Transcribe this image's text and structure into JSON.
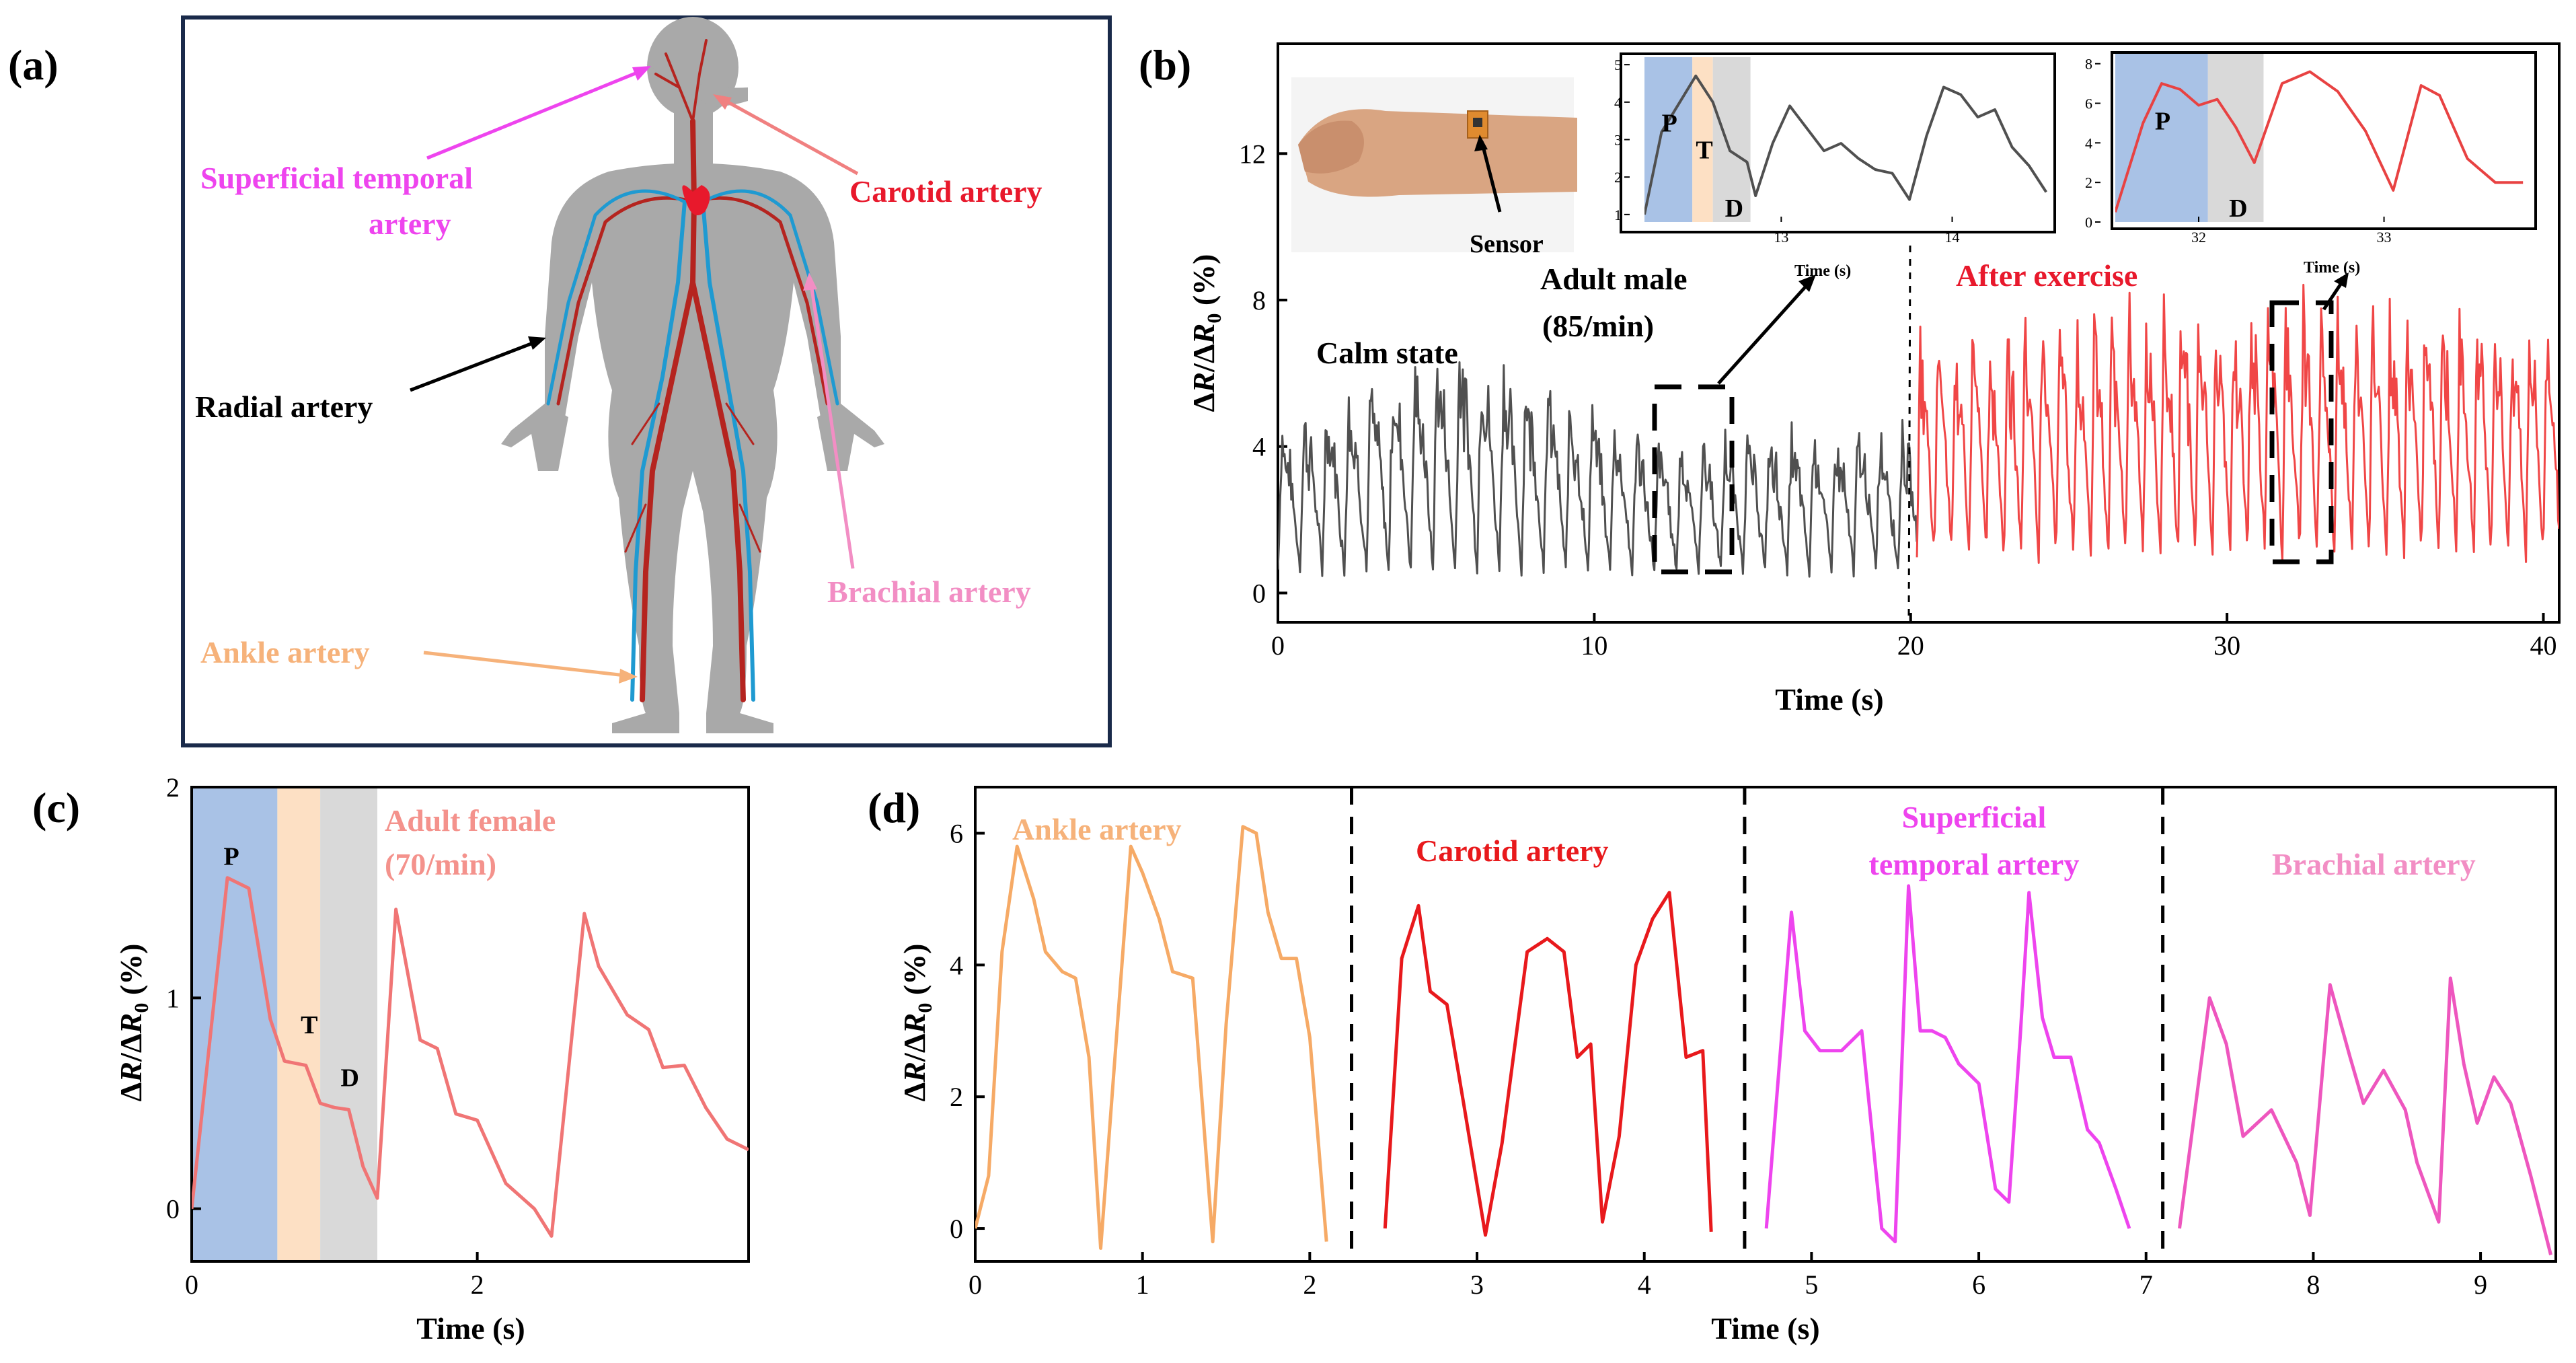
{
  "panel_labels": {
    "a": "(a)",
    "b": "(b)",
    "c": "(c)",
    "d": "(d)"
  },
  "body_diagram": {
    "labels": {
      "superficial_temporal": [
        "Superficial temporal",
        "artery"
      ],
      "carotid": "Carotid artery",
      "radial": "Radial artery",
      "brachial": "Brachial artery",
      "ankle": "Ankle artery"
    },
    "colors": {
      "superficial_temporal": "#ee44ee",
      "carotid": "#e8192c",
      "radial": "#000000",
      "brachial": "#f28ec4",
      "ankle": "#f6b27a",
      "body": "#a9a9a9",
      "frame": "#1a2a4a"
    }
  },
  "chart_data": [
    {
      "id": "b",
      "type": "line",
      "xlabel": "Time (s)",
      "ylabel": "ΔR/ΔR0 (%)",
      "xlim": [
        0,
        40.5
      ],
      "ylim": [
        -0.8,
        15
      ],
      "xticks": [
        "0",
        "10",
        "20",
        "30",
        "40"
      ],
      "yticks": [
        "0",
        "4",
        "8",
        "12"
      ],
      "annotations": {
        "calm": "Calm state",
        "subject": [
          "Adult male",
          "(85/min)"
        ],
        "exercise": "After exercise",
        "sensor": "Sensor",
        "inset_xlabel": "Time (s)"
      },
      "series": [
        {
          "name": "Calm state",
          "color": "#505050",
          "x_range": [
            0,
            20.2
          ],
          "period": 0.7,
          "baseline": 2.6,
          "amplitude": 2.2,
          "trend": [
            [
              0,
              1.0
            ],
            [
              6,
              1.6
            ],
            [
              12,
              0.9
            ],
            [
              20,
              1.0
            ]
          ]
        },
        {
          "name": "After exercise",
          "color": "#f04646",
          "x_range": [
            20.2,
            40.5
          ],
          "period": 0.55,
          "baseline": 3.7,
          "amplitude": 3.0,
          "trend": [
            [
              20.2,
              1.1
            ],
            [
              30,
              1.3
            ],
            [
              40.5,
              1.2
            ]
          ]
        }
      ],
      "insets": [
        {
          "ylim": [
            0.8,
            5.2
          ],
          "yticks": [
            "1",
            "2",
            "3",
            "4",
            "5"
          ],
          "xticks": [
            "13",
            "14"
          ],
          "color": "#505050",
          "x": [
            12.2,
            12.3,
            12.5,
            12.6,
            12.7,
            12.8,
            12.85,
            12.95,
            13.05,
            13.15,
            13.25,
            13.35,
            13.45,
            13.55,
            13.65,
            13.75,
            13.85,
            13.95,
            14.05,
            14.15,
            14.25,
            14.35,
            14.45,
            14.55
          ],
          "y": [
            1.0,
            3.2,
            4.7,
            4.0,
            2.7,
            2.4,
            1.5,
            2.9,
            3.9,
            3.3,
            2.7,
            2.9,
            2.5,
            2.2,
            2.1,
            1.4,
            3.1,
            4.4,
            4.2,
            3.6,
            3.8,
            2.8,
            2.3,
            1.6
          ],
          "phases": [
            {
              "label": "P",
              "from": 12.2,
              "to": 12.48,
              "color": "#a9c2e6"
            },
            {
              "label": "T",
              "from": 12.48,
              "to": 12.6,
              "color": "#fde0c4"
            },
            {
              "label": "D",
              "from": 12.6,
              "to": 12.82,
              "color": "#d9d9d9"
            }
          ]
        },
        {
          "ylim": [
            0,
            8.5
          ],
          "yticks": [
            "0",
            "2",
            "4",
            "6",
            "8"
          ],
          "xticks": [
            "32",
            "33"
          ],
          "color": "#e84242",
          "x": [
            31.55,
            31.7,
            31.8,
            31.9,
            32.0,
            32.1,
            32.2,
            32.3,
            32.45,
            32.6,
            32.75,
            32.9,
            33.05,
            33.2,
            33.3,
            33.45,
            33.6,
            33.75
          ],
          "y": [
            0.5,
            5.0,
            7.0,
            6.7,
            5.9,
            6.2,
            4.8,
            3.0,
            7.0,
            7.6,
            6.6,
            4.6,
            1.6,
            6.9,
            6.4,
            3.2,
            2.0,
            2.0
          ],
          "phases": [
            {
              "label": "P",
              "from": 31.55,
              "to": 32.05,
              "color": "#a9c2e6"
            },
            {
              "label": "D",
              "from": 32.05,
              "to": 32.35,
              "color": "#d9d9d9"
            }
          ]
        }
      ]
    },
    {
      "id": "c",
      "type": "line",
      "xlabel": "Time (s)",
      "ylabel": "ΔR/ΔR0 (%)",
      "xlim": [
        0,
        3.9
      ],
      "ylim": [
        -0.25,
        2
      ],
      "xticks": [
        "0",
        "2"
      ],
      "yticks": [
        "0",
        "1",
        "2"
      ],
      "annotations": {
        "subject": [
          "Adult female",
          "(70/min)"
        ]
      },
      "phases": [
        {
          "label": "P",
          "from": 0,
          "to": 0.6,
          "color": "#a9c2e6"
        },
        {
          "label": "T",
          "from": 0.6,
          "to": 0.9,
          "color": "#fde0c4"
        },
        {
          "label": "D",
          "from": 0.9,
          "to": 1.3,
          "color": "#d9d9d9"
        }
      ],
      "series": [
        {
          "name": "Adult female",
          "color": "#f07575",
          "x": [
            0,
            0.25,
            0.4,
            0.55,
            0.65,
            0.8,
            0.9,
            1.0,
            1.1,
            1.2,
            1.3,
            1.43,
            1.6,
            1.72,
            1.85,
            2.0,
            2.2,
            2.4,
            2.52,
            2.75,
            2.85,
            3.05,
            3.2,
            3.3,
            3.45,
            3.6,
            3.75,
            3.9
          ],
          "y": [
            0.0,
            1.57,
            1.52,
            0.9,
            0.7,
            0.68,
            0.5,
            0.48,
            0.47,
            0.2,
            0.05,
            1.42,
            0.8,
            0.76,
            0.45,
            0.42,
            0.12,
            0.0,
            -0.13,
            1.4,
            1.15,
            0.92,
            0.85,
            0.67,
            0.68,
            0.48,
            0.33,
            0.28
          ]
        }
      ]
    },
    {
      "id": "d",
      "type": "line",
      "xlabel": "Time (s)",
      "ylabel": "ΔR/ΔR0 (%)",
      "xlim": [
        0,
        9.45
      ],
      "ylim": [
        -0.5,
        6.7
      ],
      "xticks": [
        "0",
        "1",
        "2",
        "3",
        "4",
        "5",
        "6",
        "7",
        "8",
        "9"
      ],
      "yticks": [
        "0",
        "2",
        "4",
        "6"
      ],
      "dividers": [
        2.25,
        4.6,
        7.1
      ],
      "series": [
        {
          "name": "Ankle artery",
          "color": "#f6aa66",
          "x": [
            0,
            0.08,
            0.16,
            0.25,
            0.35,
            0.42,
            0.52,
            0.6,
            0.68,
            0.75,
            0.85,
            0.93,
            1.0,
            1.1,
            1.18,
            1.3,
            1.42,
            1.5,
            1.6,
            1.68,
            1.75,
            1.83,
            1.92,
            2.0,
            2.1
          ],
          "y": [
            0,
            0.8,
            4.2,
            5.8,
            5.0,
            4.2,
            3.9,
            3.8,
            2.6,
            -0.3,
            3.1,
            5.8,
            5.4,
            4.7,
            3.9,
            3.8,
            -0.2,
            3.1,
            6.1,
            6.0,
            4.8,
            4.1,
            4.1,
            2.9,
            -0.2
          ]
        },
        {
          "name": "Carotid artery",
          "color": "#e8191c",
          "x": [
            2.45,
            2.55,
            2.65,
            2.72,
            2.82,
            2.92,
            3.05,
            3.15,
            3.3,
            3.42,
            3.52,
            3.6,
            3.68,
            3.75,
            3.85,
            3.95,
            4.05,
            4.15,
            4.25,
            4.35,
            4.4
          ],
          "y": [
            0,
            4.1,
            4.9,
            3.6,
            3.4,
            1.9,
            -0.1,
            1.3,
            4.2,
            4.4,
            4.2,
            2.6,
            2.8,
            0.1,
            1.4,
            4.0,
            4.7,
            5.1,
            2.6,
            2.7,
            -0.05
          ]
        },
        {
          "name": "Superficial temporal artery",
          "color": "#ee44ee",
          "x": [
            4.73,
            4.88,
            4.96,
            5.05,
            5.18,
            5.3,
            5.42,
            5.5,
            5.58,
            5.65,
            5.72,
            5.8,
            5.88,
            6.0,
            6.1,
            6.18,
            6.25,
            6.3,
            6.38,
            6.45,
            6.55,
            6.65,
            6.72,
            6.82,
            6.9
          ],
          "y": [
            0,
            4.8,
            3.0,
            2.7,
            2.7,
            3.0,
            0,
            -0.2,
            5.2,
            3.0,
            3.0,
            2.9,
            2.5,
            2.2,
            0.6,
            0.4,
            3.0,
            5.1,
            3.2,
            2.6,
            2.6,
            1.5,
            1.3,
            0.6,
            0
          ]
        },
        {
          "name": "Brachial artery",
          "color": "#ee56be",
          "x": [
            7.2,
            7.38,
            7.48,
            7.58,
            7.75,
            7.9,
            7.98,
            8.1,
            8.22,
            8.3,
            8.42,
            8.55,
            8.62,
            8.75,
            8.82,
            8.9,
            8.98,
            9.08,
            9.18,
            9.3,
            9.42
          ],
          "y": [
            0,
            3.5,
            2.8,
            1.4,
            1.8,
            1.0,
            0.2,
            3.7,
            2.6,
            1.9,
            2.4,
            1.8,
            1.0,
            0.1,
            3.8,
            2.5,
            1.6,
            2.3,
            1.9,
            0.8,
            -0.4
          ]
        }
      ]
    }
  ]
}
